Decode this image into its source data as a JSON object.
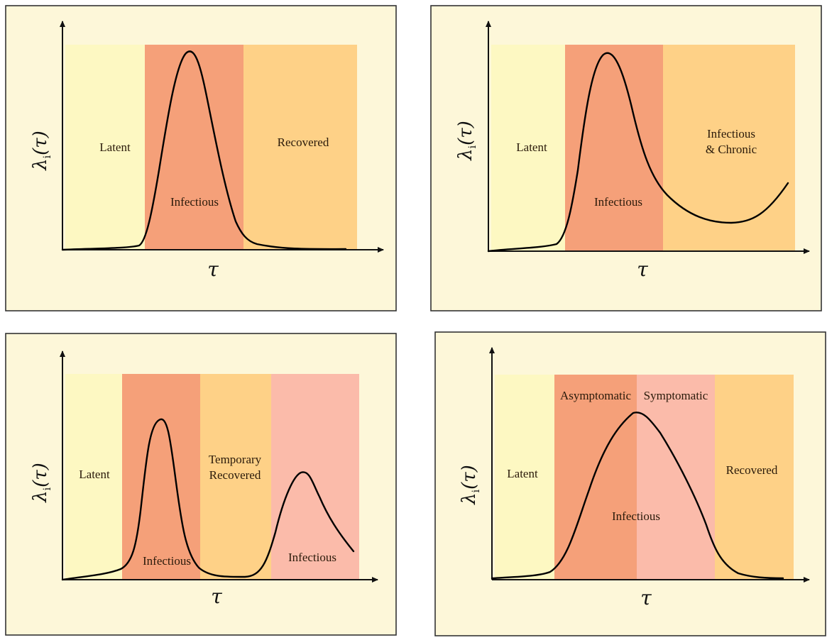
{
  "colors": {
    "panel_bg": "#fdf7d9",
    "panel_border": "#333333",
    "latent": "#fdf8c2",
    "infectious": "#f5a079",
    "recovered": "#fed187",
    "symptomatic": "#fbbbaa",
    "curve": "#000000"
  },
  "panels": [
    {
      "id": "A",
      "y_label": "λ",
      "y_label_sub": "i",
      "y_label_arg": "(τ)",
      "x_label": "τ",
      "stages": [
        {
          "lines": [
            "Latent"
          ]
        },
        {
          "lines": [
            "Infectious"
          ]
        },
        {
          "lines": [
            "Recovered"
          ]
        }
      ]
    },
    {
      "id": "B",
      "y_label": "λ",
      "y_label_sub": "i",
      "y_label_arg": "(τ)",
      "x_label": "τ",
      "stages": [
        {
          "lines": [
            "Latent"
          ]
        },
        {
          "lines": [
            "Infectious"
          ]
        },
        {
          "lines": [
            "Infectious",
            "& Chronic"
          ]
        }
      ]
    },
    {
      "id": "C",
      "y_label": "λ",
      "y_label_sub": "i",
      "y_label_arg": "(τ)",
      "x_label": "τ",
      "stages": [
        {
          "lines": [
            "Latent"
          ]
        },
        {
          "lines": [
            "Infectious"
          ]
        },
        {
          "lines": [
            "Temporary",
            "Recovered"
          ]
        },
        {
          "lines": [
            "Infectious"
          ]
        }
      ]
    },
    {
      "id": "D",
      "y_label": "λ",
      "y_label_sub": "i",
      "y_label_arg": "(τ)",
      "x_label": "τ",
      "stages": [
        {
          "lines": [
            "Latent"
          ]
        },
        {
          "lines": [
            "Asymptomatic"
          ]
        },
        {
          "lines": [
            "Symptomatic"
          ]
        },
        {
          "lines": [
            "Recovered"
          ]
        },
        {
          "lines": [
            "Infectious"
          ]
        }
      ]
    }
  ]
}
